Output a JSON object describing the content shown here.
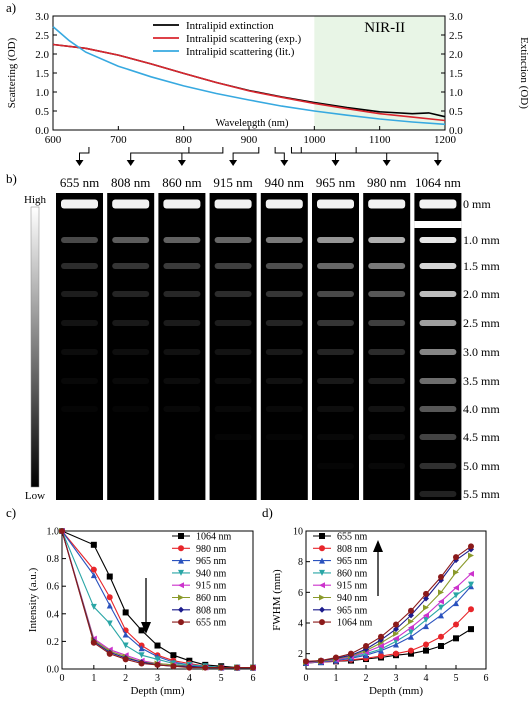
{
  "panel_labels": {
    "a": "a)",
    "b": "b)",
    "c": "c)",
    "d": "d)"
  },
  "chart_data": [
    {
      "id": "a",
      "type": "line",
      "xlabel": "Wavelength (nm)",
      "ylabel_left": "Scattering (OD)",
      "ylabel_right": "Extinction (OD)",
      "xlim": [
        600,
        1200
      ],
      "ylim": [
        0,
        3.0
      ],
      "xticks": [
        600,
        700,
        800,
        900,
        1000,
        1100,
        1200
      ],
      "yticks": [
        0.0,
        0.5,
        1.0,
        1.5,
        2.0,
        2.5,
        3.0
      ],
      "region": {
        "label": "NIR-II",
        "x_start": 1000,
        "x_end": 1200,
        "color": "#e8f5e6"
      },
      "series": [
        {
          "name": "Intralipid extinction",
          "color": "#000000",
          "points": [
            [
              600,
              2.25
            ],
            [
              650,
              2.15
            ],
            [
              700,
              1.97
            ],
            [
              750,
              1.74
            ],
            [
              800,
              1.49
            ],
            [
              850,
              1.25
            ],
            [
              900,
              1.04
            ],
            [
              950,
              0.87
            ],
            [
              1000,
              0.72
            ],
            [
              1050,
              0.59
            ],
            [
              1100,
              0.48
            ],
            [
              1150,
              0.43
            ],
            [
              1175,
              0.45
            ],
            [
              1200,
              0.35
            ]
          ]
        },
        {
          "name": "Intralipid scattering (exp.)",
          "color": "#d9262e",
          "points": [
            [
              600,
              2.25
            ],
            [
              650,
              2.15
            ],
            [
              700,
              1.97
            ],
            [
              750,
              1.74
            ],
            [
              800,
              1.49
            ],
            [
              850,
              1.25
            ],
            [
              900,
              1.03
            ],
            [
              950,
              0.86
            ],
            [
              1000,
              0.7
            ],
            [
              1050,
              0.56
            ],
            [
              1100,
              0.43
            ],
            [
              1150,
              0.34
            ],
            [
              1200,
              0.25
            ]
          ]
        },
        {
          "name": "Intralipid scattering (lit.)",
          "color": "#37a9e0",
          "points": [
            [
              600,
              2.72
            ],
            [
              625,
              2.35
            ],
            [
              650,
              2.05
            ],
            [
              700,
              1.68
            ],
            [
              750,
              1.4
            ],
            [
              800,
              1.16
            ],
            [
              850,
              0.96
            ],
            [
              900,
              0.79
            ],
            [
              950,
              0.63
            ],
            [
              1000,
              0.5
            ],
            [
              1050,
              0.39
            ],
            [
              1100,
              0.29
            ],
            [
              1150,
              0.21
            ],
            [
              1200,
              0.15
            ]
          ]
        }
      ]
    },
    {
      "id": "b",
      "type": "image-grid",
      "wavelengths": [
        "655 nm",
        "808 nm",
        "860 nm",
        "915 nm",
        "940 nm",
        "965 nm",
        "980 nm",
        "1064 nm"
      ],
      "connector_targets_nm": [
        655,
        808,
        860,
        915,
        940,
        965,
        980,
        1064
      ],
      "depths": [
        "0 mm",
        "1.0 mm",
        "1.5 mm",
        "2.0 mm",
        "2.5 mm",
        "3.0 mm",
        "3.5 mm",
        "4.0 mm",
        "4.5 mm",
        "5.0 mm",
        "5.5 mm"
      ],
      "colorbar": {
        "high": "High",
        "low": "Low"
      },
      "relative_intensity": [
        [
          1.0,
          0.3,
          0.18,
          0.12,
          0.08,
          0.05,
          0.03,
          0.02,
          0.0,
          0.0,
          0.0
        ],
        [
          1.0,
          0.38,
          0.22,
          0.15,
          0.1,
          0.06,
          0.04,
          0.02,
          0.0,
          0.0,
          0.0
        ],
        [
          1.0,
          0.4,
          0.24,
          0.16,
          0.11,
          0.07,
          0.05,
          0.03,
          0.0,
          0.0,
          0.0
        ],
        [
          1.0,
          0.42,
          0.26,
          0.18,
          0.12,
          0.08,
          0.05,
          0.03,
          0.02,
          0.0,
          0.0
        ],
        [
          1.0,
          0.5,
          0.32,
          0.22,
          0.15,
          0.1,
          0.07,
          0.04,
          0.02,
          0.0,
          0.0
        ],
        [
          1.0,
          0.62,
          0.42,
          0.3,
          0.22,
          0.15,
          0.1,
          0.06,
          0.03,
          0.02,
          0.0
        ],
        [
          1.0,
          0.72,
          0.5,
          0.36,
          0.26,
          0.18,
          0.12,
          0.08,
          0.05,
          0.03,
          0.0
        ],
        [
          1.0,
          0.95,
          0.88,
          0.78,
          0.65,
          0.55,
          0.45,
          0.36,
          0.28,
          0.2,
          0.14
        ]
      ]
    },
    {
      "id": "c",
      "type": "line",
      "xlabel": "Depth (mm)",
      "ylabel": "Intensity (a.u.)",
      "xlim": [
        0,
        6
      ],
      "ylim": [
        0,
        1.0
      ],
      "xticks": [
        0,
        1,
        2,
        3,
        4,
        5,
        6
      ],
      "yticks": [
        0.0,
        0.2,
        0.4,
        0.6,
        0.8,
        1.0
      ],
      "x": [
        0,
        1.0,
        1.5,
        2.0,
        2.5,
        3.0,
        3.5,
        4.0,
        4.5,
        5.0,
        5.5,
        6.0
      ],
      "series": [
        {
          "name": "1064 nm",
          "color": "#000000",
          "marker": "square",
          "values": [
            1.0,
            0.9,
            0.67,
            0.41,
            0.28,
            0.17,
            0.1,
            0.06,
            0.03,
            0.02,
            0.01,
            0.01
          ]
        },
        {
          "name": "980 nm",
          "color": "#e8262b",
          "marker": "circle",
          "values": [
            1.0,
            0.72,
            0.52,
            0.28,
            0.17,
            0.1,
            0.06,
            0.04,
            0.02,
            0.01,
            0.01,
            0.01
          ]
        },
        {
          "name": "965 nm",
          "color": "#2a52be",
          "marker": "triangle",
          "values": [
            1.0,
            0.68,
            0.46,
            0.25,
            0.15,
            0.09,
            0.05,
            0.03,
            0.02,
            0.01,
            0.01,
            0.01
          ]
        },
        {
          "name": "940 nm",
          "color": "#2aa6a6",
          "marker": "tri-down",
          "values": [
            1.0,
            0.45,
            0.33,
            0.17,
            0.1,
            0.07,
            0.04,
            0.03,
            0.02,
            0.01,
            0.01,
            0.01
          ]
        },
        {
          "name": "915 nm",
          "color": "#cc33cc",
          "marker": "tri-left",
          "values": [
            1.0,
            0.22,
            0.14,
            0.1,
            0.06,
            0.04,
            0.03,
            0.02,
            0.01,
            0.01,
            0.01,
            0.01
          ]
        },
        {
          "name": "860 nm",
          "color": "#8a9a2a",
          "marker": "tri-right",
          "values": [
            1.0,
            0.21,
            0.13,
            0.09,
            0.05,
            0.04,
            0.03,
            0.02,
            0.01,
            0.01,
            0.01,
            0.01
          ]
        },
        {
          "name": "808 nm",
          "color": "#1c1c8c",
          "marker": "diamond",
          "values": [
            1.0,
            0.2,
            0.12,
            0.08,
            0.05,
            0.03,
            0.02,
            0.02,
            0.01,
            0.01,
            0.01,
            0.01
          ]
        },
        {
          "name": "655 nm",
          "color": "#8b1a1a",
          "marker": "circle",
          "values": [
            1.0,
            0.19,
            0.11,
            0.07,
            0.04,
            0.03,
            0.02,
            0.01,
            0.01,
            0.01,
            0.01,
            0.01
          ]
        }
      ],
      "annotation": "arrow pointing down"
    },
    {
      "id": "d",
      "type": "line",
      "xlabel": "Depth (mm)",
      "ylabel": "FWHM (mm)",
      "xlim": [
        0,
        6
      ],
      "ylim": [
        1,
        10
      ],
      "xticks": [
        0,
        1,
        2,
        3,
        4,
        5,
        6
      ],
      "yticks": [
        2,
        4,
        6,
        8,
        10
      ],
      "x": [
        0,
        0.5,
        1.0,
        1.5,
        2.0,
        2.5,
        3.0,
        3.5,
        4.0,
        4.5,
        5.0,
        5.5
      ],
      "series": [
        {
          "name": "655 nm",
          "color": "#000000",
          "marker": "square",
          "values": [
            1.4,
            1.45,
            1.5,
            1.55,
            1.65,
            1.75,
            1.9,
            2.0,
            2.2,
            2.5,
            3.0,
            3.6
          ]
        },
        {
          "name": "808 nm",
          "color": "#e8262b",
          "marker": "circle",
          "values": [
            1.4,
            1.45,
            1.5,
            1.6,
            1.7,
            1.85,
            2.0,
            2.2,
            2.6,
            3.1,
            3.9,
            4.9
          ]
        },
        {
          "name": "965 nm",
          "color": "#2a52be",
          "marker": "triangle",
          "values": [
            1.4,
            1.45,
            1.55,
            1.7,
            1.9,
            2.2,
            2.6,
            3.1,
            3.8,
            4.5,
            5.3,
            6.4
          ]
        },
        {
          "name": "860 nm",
          "color": "#2aa6a6",
          "marker": "tri-down",
          "values": [
            1.4,
            1.5,
            1.6,
            1.75,
            2.0,
            2.3,
            2.8,
            3.4,
            4.2,
            5.0,
            5.8,
            6.5
          ]
        },
        {
          "name": "915 nm",
          "color": "#cc33cc",
          "marker": "tri-left",
          "values": [
            1.4,
            1.5,
            1.6,
            1.8,
            2.1,
            2.5,
            3.0,
            3.7,
            4.5,
            5.4,
            6.3,
            7.2
          ]
        },
        {
          "name": "940 nm",
          "color": "#8a9a2a",
          "marker": "tri-right",
          "values": [
            1.45,
            1.5,
            1.65,
            1.85,
            2.2,
            2.7,
            3.3,
            4.1,
            5.0,
            6.0,
            7.3,
            8.4
          ]
        },
        {
          "name": "965 nm",
          "color": "#1c1c8c",
          "marker": "diamond",
          "values": [
            1.45,
            1.55,
            1.7,
            1.9,
            2.3,
            2.9,
            3.6,
            4.5,
            5.6,
            6.8,
            8.1,
            8.8
          ]
        },
        {
          "name": "1064 nm",
          "color": "#8b1a1a",
          "marker": "circle",
          "values": [
            1.5,
            1.55,
            1.75,
            2.0,
            2.5,
            3.1,
            3.9,
            4.8,
            5.9,
            7.0,
            8.3,
            9.0
          ]
        }
      ],
      "annotation": "arrow pointing up"
    }
  ]
}
